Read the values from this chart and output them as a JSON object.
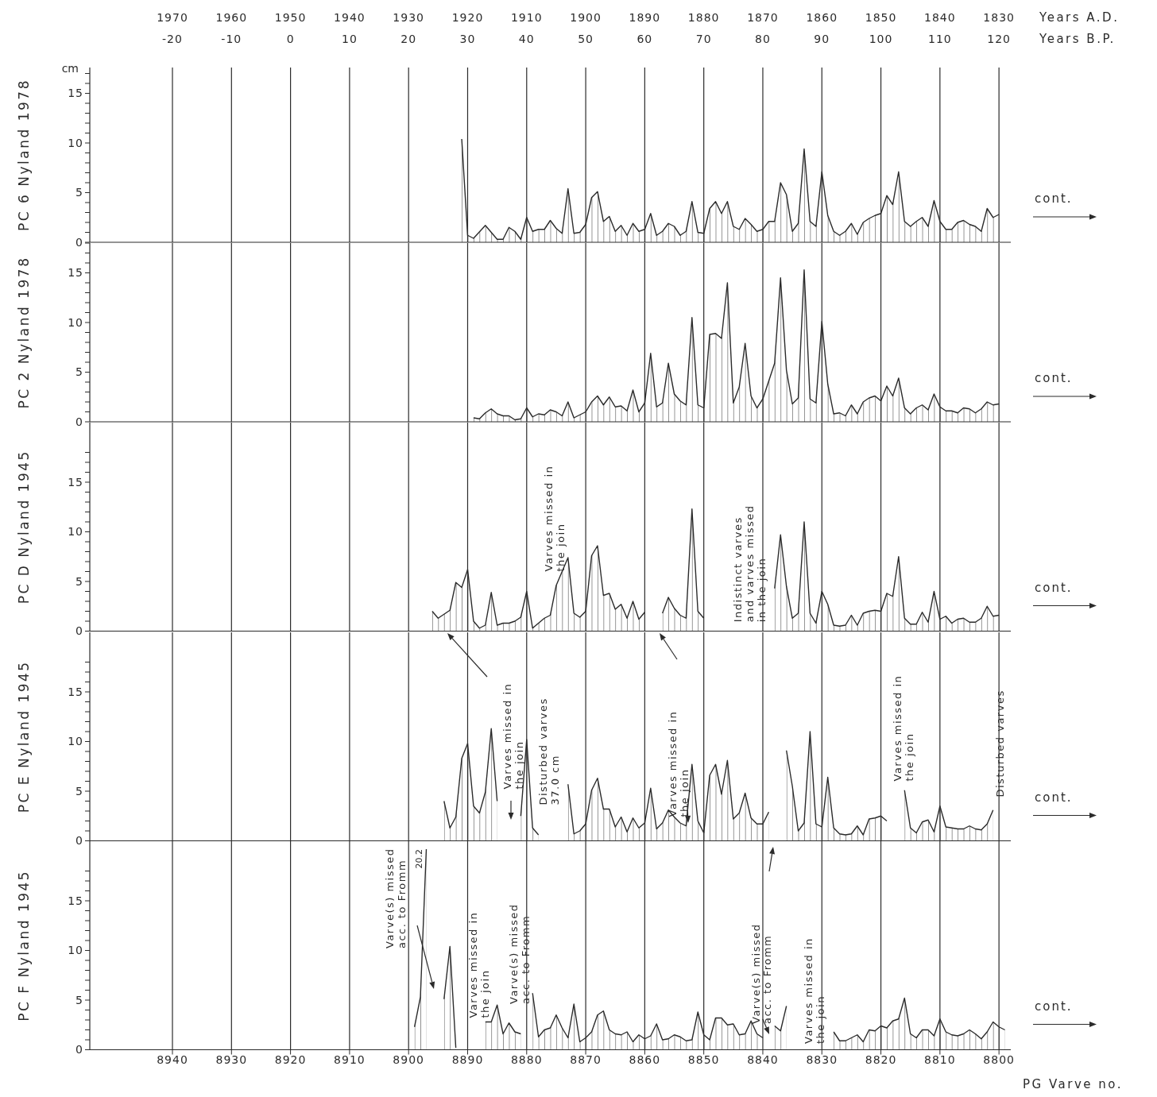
{
  "chart_data": [
    {
      "type": "area",
      "ylabel": "PC 6 Nyland 1978",
      "x2label": "Years A.D.",
      "color": "#2b2b2b",
      "grid": "x",
      "tick_labels": "y",
      "xlim": [
        8954,
        8798
      ],
      "xticks": [
        8940,
        8930,
        8920,
        8910,
        8900,
        8890,
        8880,
        8870,
        8860,
        8850,
        8840,
        8830,
        8820,
        8810,
        8800
      ],
      "x2lim": [
        1984,
        1828
      ],
      "x2ticks": [
        1970,
        1960,
        1950,
        1940,
        1930,
        1920,
        1910,
        1900,
        1890,
        1880,
        1870,
        1860,
        1850,
        1840,
        1830
      ],
      "ylim": [
        0,
        17.6
      ],
      "yticks": [
        0,
        {
          "value": 1,
          "label": null
        },
        {
          "value": 2,
          "label": null
        },
        {
          "value": 3,
          "label": null
        },
        {
          "value": 4,
          "label": null
        },
        5,
        {
          "value": 6,
          "label": null
        },
        {
          "value": 7,
          "label": null
        },
        {
          "value": 8,
          "label": null
        },
        {
          "value": 9,
          "label": null
        },
        10,
        {
          "value": 11,
          "label": null
        },
        {
          "value": 12,
          "label": null
        },
        {
          "value": 13,
          "label": null
        },
        {
          "value": 14,
          "label": null
        },
        15,
        {
          "value": 16,
          "label": null
        },
        {
          "value": 17,
          "label": null
        }
      ],
      "annotations": [
        "cont.",
        "cm",
        "Years B.P.",
        "-20",
        "-10",
        "0",
        "10",
        "20",
        "30",
        "40",
        "50",
        "60",
        "70",
        "80",
        "90",
        "100",
        "110",
        "120"
      ],
      "x": [
        8891,
        8890,
        8889,
        8887,
        8885,
        8884,
        8883,
        8882,
        8881,
        8880,
        8879,
        8878,
        8877,
        8876,
        8875,
        8874,
        8873,
        8872,
        8871,
        8870,
        8869,
        8868,
        8867,
        8866,
        8865,
        8864,
        8863,
        8862,
        8861,
        8860,
        8859,
        8858,
        8857,
        8856,
        8855,
        8854,
        8853,
        8852,
        8851,
        8850,
        8849,
        8848,
        8847,
        8846,
        8845,
        8844,
        8843,
        8842,
        8841,
        8840,
        8839,
        8838,
        8837,
        8836,
        8835,
        8834,
        8833,
        8832,
        8831,
        8830,
        8829,
        8828,
        8827,
        8826,
        8825,
        8824,
        8823,
        8822,
        8821,
        8820,
        8819,
        8818,
        8817,
        8816,
        8815,
        8814,
        8813,
        8812,
        8811,
        8810,
        8809,
        8808,
        8807,
        8806,
        8805,
        8804,
        8803,
        8802,
        8801,
        8800
      ],
      "values": [
        10.4,
        0.7,
        0.4,
        1.7,
        0.3,
        0.3,
        1.5,
        1.1,
        0.3,
        2.5,
        1.1,
        1.3,
        1.3,
        2.2,
        1.4,
        0.9,
        5.4,
        0.9,
        1.0,
        1.8,
        4.5,
        5.1,
        2.1,
        2.6,
        1.1,
        1.7,
        0.7,
        1.9,
        1.1,
        1.3,
        2.9,
        0.7,
        1.1,
        1.9,
        1.6,
        0.7,
        1.1,
        4.1,
        1.0,
        0.9,
        3.4,
        4.1,
        2.9,
        4.1,
        1.6,
        1.3,
        2.4,
        1.8,
        1.1,
        1.3,
        2.1,
        2.1,
        6.0,
        4.8,
        1.1,
        1.9,
        9.4,
        2.1,
        1.6,
        7.1,
        2.7,
        1.1,
        0.7,
        1.1,
        1.9,
        0.8,
        2.0,
        2.4,
        2.7,
        2.9,
        4.7,
        3.8,
        7.1,
        2.1,
        1.6,
        2.1,
        2.5,
        1.6,
        4.2,
        2.1,
        1.3,
        1.3,
        2.0,
        2.2,
        1.8,
        1.6,
        1.1,
        3.4,
        2.5,
        2.8
      ]
    },
    {
      "type": "area",
      "ylabel": "PC 2 Nyland 1978",
      "color": "#2b2b2b",
      "grid": "x",
      "tick_labels": "y",
      "xlim": [
        8954,
        8798
      ],
      "xticks": [
        8940,
        8930,
        8920,
        8910,
        8900,
        8890,
        8880,
        8870,
        8860,
        8850,
        8840,
        8830,
        8820,
        8810,
        8800
      ],
      "ylim": [
        0,
        18
      ],
      "yticks": [
        0,
        {
          "value": 1,
          "label": null
        },
        {
          "value": 2,
          "label": null
        },
        {
          "value": 3,
          "label": null
        },
        {
          "value": 4,
          "label": null
        },
        5,
        {
          "value": 6,
          "label": null
        },
        {
          "value": 7,
          "label": null
        },
        {
          "value": 8,
          "label": null
        },
        {
          "value": 9,
          "label": null
        },
        10,
        {
          "value": 11,
          "label": null
        },
        {
          "value": 12,
          "label": null
        },
        {
          "value": 13,
          "label": null
        },
        {
          "value": 14,
          "label": null
        },
        15,
        {
          "value": 16,
          "label": null
        },
        {
          "value": 17,
          "label": null
        },
        {
          "value": 18,
          "label": null
        }
      ],
      "annotations": [
        "cont."
      ],
      "x": [
        8889,
        8888,
        8887,
        8886,
        8885,
        8884,
        8883,
        8882,
        8881,
        8880,
        8879,
        8878,
        8877,
        8876,
        8875,
        8874,
        8873,
        8872,
        8871,
        8870,
        8869,
        8868,
        8867,
        8866,
        8865,
        8864,
        8863,
        8862,
        8861,
        8860,
        8859,
        8858,
        8857,
        8856,
        8855,
        8854,
        8853,
        8852,
        8851,
        8850,
        8849,
        8848,
        8847,
        8846,
        8845,
        8844,
        8843,
        8842,
        8841,
        8840,
        8839,
        8838,
        8837,
        8836,
        8835,
        8834,
        8833,
        8832,
        8831,
        8830,
        8829,
        8828,
        8827,
        8826,
        8825,
        8824,
        8823,
        8822,
        8821,
        8820,
        8819,
        8818,
        8817,
        8816,
        8815,
        8814,
        8813,
        8812,
        8811,
        8810,
        8809,
        8808,
        8807,
        8806,
        8805,
        8804,
        8803,
        8802,
        8801,
        8800
      ],
      "values": [
        0.4,
        0.3,
        0.9,
        1.3,
        0.8,
        0.6,
        0.6,
        0.2,
        0.3,
        1.4,
        0.5,
        0.8,
        0.7,
        1.2,
        1.0,
        0.6,
        2.0,
        0.4,
        0.7,
        1.0,
        2.0,
        2.6,
        1.7,
        2.5,
        1.5,
        1.6,
        1.1,
        3.2,
        1.0,
        1.9,
        6.9,
        1.5,
        1.9,
        5.9,
        2.8,
        2.1,
        1.7,
        10.5,
        1.7,
        1.4,
        8.8,
        8.9,
        8.4,
        14.0,
        1.9,
        3.5,
        7.9,
        2.6,
        1.4,
        2.3,
        4.1,
        5.9,
        14.5,
        5.2,
        1.8,
        2.4,
        15.3,
        2.3,
        1.9,
        10.1,
        3.8,
        0.8,
        0.9,
        0.6,
        1.7,
        0.8,
        2.0,
        2.4,
        2.6,
        2.1,
        3.6,
        2.6,
        4.4,
        1.4,
        0.8,
        1.4,
        1.7,
        1.2,
        2.8,
        1.5,
        1.1,
        1.1,
        0.9,
        1.4,
        1.3,
        0.9,
        1.3,
        2.0,
        1.7,
        1.8
      ]
    },
    {
      "type": "area",
      "ylabel": "PC D Nyland 1945",
      "color": "#2b2b2b",
      "grid": "x",
      "tick_labels": "y",
      "xlim": [
        8954,
        8798
      ],
      "xticks": [
        8940,
        8930,
        8920,
        8910,
        8900,
        8890,
        8880,
        8870,
        8860,
        8850,
        8840,
        8830,
        8820,
        8810,
        8800
      ],
      "ylim": [
        0,
        21
      ],
      "yticks": [
        0,
        {
          "value": 1,
          "label": null
        },
        {
          "value": 2,
          "label": null
        },
        {
          "value": 3,
          "label": null
        },
        {
          "value": 4,
          "label": null
        },
        5,
        {
          "value": 6,
          "label": null
        },
        {
          "value": 7,
          "label": null
        },
        {
          "value": 8,
          "label": null
        },
        {
          "value": 9,
          "label": null
        },
        10,
        {
          "value": 11,
          "label": null
        },
        {
          "value": 12,
          "label": null
        },
        {
          "value": 13,
          "label": null
        },
        {
          "value": 14,
          "label": null
        },
        15,
        {
          "value": 16,
          "label": null
        },
        {
          "value": 17,
          "label": null
        },
        {
          "value": 18,
          "label": null
        }
      ],
      "annotations": [
        "cont.",
        "Varves missed in\nthe join",
        "Indistinct varves\nand varves missed\nin the join"
      ],
      "x": [
        8896,
        8895,
        8893,
        8892,
        8891,
        8890,
        8889,
        8888,
        8887,
        8886,
        8885,
        8884,
        8883,
        8882,
        8881,
        8880,
        8879,
        8878,
        8877,
        8876,
        8875,
        8873,
        8872,
        8871,
        8870,
        8869,
        8868,
        8867,
        8866,
        8865,
        8864,
        8863,
        8862,
        8861,
        8860,
        8858,
        8857,
        8856,
        8855,
        8854,
        8853,
        8852,
        8851,
        8850,
        8849,
        8838,
        8837,
        8836,
        8835,
        8834,
        8833,
        8832,
        8831,
        8830,
        8829,
        8828,
        8827,
        8826,
        8825,
        8824,
        8823,
        8822,
        8821,
        8820,
        8819,
        8818,
        8817,
        8816,
        8815,
        8814,
        8813,
        8812,
        8811,
        8810,
        8809,
        8808,
        8807,
        8806,
        8805,
        8804,
        8803,
        8802,
        8801,
        8800
      ],
      "values": [
        2.0,
        1.3,
        2.1,
        4.9,
        4.4,
        6.2,
        1.0,
        0.3,
        0.6,
        3.9,
        0.6,
        0.8,
        0.8,
        1.0,
        1.4,
        4.0,
        0.3,
        0.8,
        1.3,
        1.6,
        4.6,
        7.4,
        1.8,
        1.4,
        2.0,
        7.6,
        8.6,
        3.6,
        3.8,
        2.2,
        2.7,
        1.3,
        3.0,
        1.2,
        1.9,
        null,
        1.8,
        3.4,
        2.3,
        1.6,
        1.3,
        12.3,
        2.0,
        1.3,
        null,
        4.3,
        9.7,
        4.5,
        1.3,
        1.8,
        11.0,
        1.8,
        0.8,
        4.0,
        2.7,
        0.6,
        0.5,
        0.6,
        1.6,
        0.6,
        1.8,
        2.0,
        2.1,
        2.0,
        3.8,
        3.5,
        7.5,
        1.3,
        0.7,
        0.7,
        1.9,
        0.9,
        4.0,
        1.2,
        1.5,
        0.8,
        1.2,
        1.3,
        0.9,
        0.9,
        1.3,
        2.5,
        1.5,
        1.6
      ]
    },
    {
      "type": "area",
      "ylabel": "PC E Nyland 1945",
      "color": "#2b2b2b",
      "grid": "x",
      "tick_labels": "y",
      "xlim": [
        8954,
        8798
      ],
      "xticks": [
        8940,
        8930,
        8920,
        8910,
        8900,
        8890,
        8880,
        8870,
        8860,
        8850,
        8840,
        8830,
        8820,
        8810,
        8800
      ],
      "ylim": [
        0,
        21
      ],
      "yticks": [
        0,
        {
          "value": 1,
          "label": null
        },
        {
          "value": 2,
          "label": null
        },
        {
          "value": 3,
          "label": null
        },
        {
          "value": 4,
          "label": null
        },
        5,
        {
          "value": 6,
          "label": null
        },
        {
          "value": 7,
          "label": null
        },
        {
          "value": 8,
          "label": null
        },
        {
          "value": 9,
          "label": null
        },
        10,
        {
          "value": 11,
          "label": null
        },
        {
          "value": 12,
          "label": null
        },
        {
          "value": 13,
          "label": null
        },
        {
          "value": 14,
          "label": null
        },
        15,
        {
          "value": 16,
          "label": null
        },
        {
          "value": 17,
          "label": null
        },
        {
          "value": 18,
          "label": null
        }
      ],
      "annotations": [
        "cont.",
        "Varves missed in\nthe join",
        "Disturbed varves\n37.0 cm",
        "Varves missed in\nthe join",
        "Varves missed in\nthe join",
        "Disturbed varves"
      ],
      "x": [
        8894,
        8893,
        8892,
        8891,
        8890,
        8889,
        8888,
        8887,
        8886,
        8885,
        8883,
        8881,
        8880,
        8879,
        8878,
        8876,
        8873,
        8872,
        8871,
        8870,
        8869,
        8868,
        8867,
        8866,
        8865,
        8864,
        8863,
        8862,
        8861,
        8860,
        8859,
        8858,
        8857,
        8856,
        8855,
        8854,
        8853,
        8852,
        8851,
        8850,
        8849,
        8848,
        8847,
        8846,
        8845,
        8844,
        8843,
        8842,
        8841,
        8840,
        8839,
        8837,
        8836,
        8835,
        8834,
        8833,
        8832,
        8831,
        8830,
        8829,
        8828,
        8827,
        8826,
        8825,
        8824,
        8823,
        8822,
        8821,
        8820,
        8819,
        8817,
        8816,
        8815,
        8814,
        8813,
        8812,
        8811,
        8810,
        8809,
        8808,
        8807,
        8806,
        8805,
        8804,
        8803,
        8802,
        8801
      ],
      "values": [
        4.0,
        1.3,
        2.4,
        8.3,
        9.8,
        3.5,
        2.8,
        4.9,
        11.3,
        4.0,
        null,
        2.5,
        10.2,
        1.3,
        0.6,
        null,
        5.7,
        0.7,
        1.0,
        1.7,
        5.1,
        6.3,
        3.2,
        3.2,
        1.4,
        2.4,
        0.9,
        2.3,
        1.3,
        1.8,
        5.3,
        1.2,
        1.8,
        3.1,
        2.4,
        1.8,
        1.5,
        7.7,
        2.0,
        0.8,
        6.6,
        7.7,
        4.7,
        8.1,
        2.2,
        2.8,
        4.8,
        2.3,
        1.7,
        1.7,
        2.9,
        null,
        9.1,
        5.5,
        1.0,
        1.8,
        11.0,
        1.7,
        1.4,
        6.4,
        1.3,
        0.7,
        0.6,
        0.7,
        1.5,
        0.6,
        2.2,
        2.3,
        2.5,
        2.0,
        null,
        5.1,
        1.3,
        0.8,
        1.9,
        2.1,
        0.9,
        3.5,
        1.4,
        1.3,
        1.2,
        1.2,
        1.5,
        1.2,
        1.1,
        1.7,
        3.1
      ]
    },
    {
      "type": "area",
      "ylabel": "PC F Nyland 1945",
      "xlabel": "PG Varve no.",
      "color": "#2b2b2b",
      "grid": "x",
      "xlim": [
        8954,
        8798
      ],
      "xticks": [
        8940,
        8930,
        8920,
        8910,
        8900,
        8890,
        8880,
        8870,
        8860,
        8850,
        8840,
        8830,
        8820,
        8810,
        8800
      ],
      "ylim": [
        0,
        21
      ],
      "yticks": [
        0,
        {
          "value": 1,
          "label": null
        },
        {
          "value": 2,
          "label": null
        },
        {
          "value": 3,
          "label": null
        },
        {
          "value": 4,
          "label": null
        },
        5,
        {
          "value": 6,
          "label": null
        },
        {
          "value": 7,
          "label": null
        },
        {
          "value": 8,
          "label": null
        },
        {
          "value": 9,
          "label": null
        },
        10,
        {
          "value": 11,
          "label": null
        },
        {
          "value": 12,
          "label": null
        },
        {
          "value": 13,
          "label": null
        },
        {
          "value": 14,
          "label": null
        },
        15,
        {
          "value": 16,
          "label": null
        },
        {
          "value": 17,
          "label": null
        },
        {
          "value": 18,
          "label": null
        }
      ],
      "annotations": [
        "cont.",
        "Varve(s) missed\nacc. to Fromm",
        {
          "text": "20.2",
          "x": 8897,
          "y": 20.2
        },
        "Varves missed in\nthe join",
        "Varve(s) missed\nacc. to Fromm",
        "Varve(s) missed\nacc. to Fromm",
        "Varves missed in\nthe join"
      ],
      "x": [
        8899,
        8898,
        8897,
        8896,
        8894,
        8893,
        8892,
        8889,
        8887,
        8886,
        8885,
        8884,
        8883,
        8882,
        8881,
        8880,
        8879,
        8878,
        8877,
        8876,
        8875,
        8874,
        8873,
        8872,
        8871,
        8870,
        8869,
        8868,
        8867,
        8866,
        8865,
        8864,
        8863,
        8862,
        8861,
        8860,
        8859,
        8858,
        8857,
        8856,
        8855,
        8854,
        8853,
        8852,
        8851,
        8850,
        8849,
        8848,
        8847,
        8846,
        8845,
        8844,
        8843,
        8842,
        8841,
        8840,
        8839,
        8838,
        8837,
        8836,
        8835,
        8828,
        8827,
        8826,
        8825,
        8824,
        8823,
        8822,
        8821,
        8820,
        8819,
        8818,
        8817,
        8816,
        8815,
        8814,
        8813,
        8812,
        8811,
        8810,
        8809,
        8808,
        8807,
        8806,
        8805,
        8804,
        8803,
        8802,
        8801,
        8800,
        8799
      ],
      "values": [
        2.3,
        5.3,
        20.2,
        null,
        5.1,
        10.4,
        0.2,
        null,
        2.8,
        2.8,
        4.5,
        1.6,
        2.7,
        1.8,
        1.6,
        null,
        5.7,
        1.3,
        2.0,
        2.2,
        3.5,
        2.2,
        1.2,
        4.6,
        0.8,
        1.2,
        1.8,
        3.5,
        3.9,
        2.0,
        1.6,
        1.5,
        1.8,
        0.8,
        1.5,
        1.1,
        1.4,
        2.6,
        1.0,
        1.1,
        1.5,
        1.3,
        0.9,
        1.0,
        3.8,
        1.5,
        1.0,
        3.2,
        3.2,
        2.5,
        2.6,
        1.5,
        1.6,
        2.9,
        1.6,
        1.2,
        null,
        2.4,
        1.9,
        4.4,
        null,
        1.8,
        0.9,
        0.9,
        1.2,
        1.5,
        0.8,
        2.0,
        1.9,
        2.4,
        2.2,
        2.9,
        3.1,
        5.2,
        1.6,
        1.2,
        2.0,
        2.0,
        1.4,
        3.1,
        1.8,
        1.5,
        1.4,
        1.6,
        2.0,
        1.6,
        1.1,
        1.8,
        2.8,
        2.3,
        2.0
      ]
    }
  ]
}
